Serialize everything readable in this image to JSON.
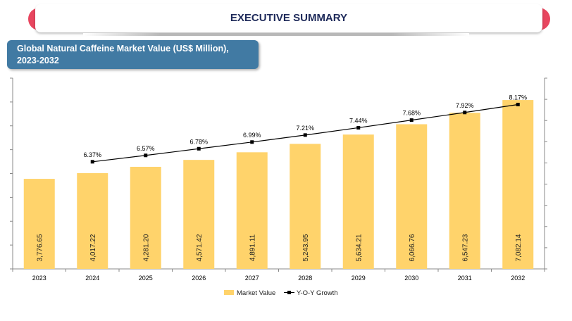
{
  "header": {
    "title": "EXECUTIVE SUMMARY"
  },
  "chart_data": {
    "type": "bar",
    "title": "Global Natural Caffeine Market Value (US$ Million), 2023-2032",
    "categories": [
      "2023",
      "2024",
      "2025",
      "2026",
      "2027",
      "2028",
      "2029",
      "2030",
      "2031",
      "2032"
    ],
    "series": [
      {
        "name": "Market Value",
        "values": [
          3776.65,
          4017.22,
          4281.2,
          4571.42,
          4891.11,
          5243.95,
          5634.21,
          6066.76,
          6547.23,
          7082.14
        ],
        "labels": [
          "3,776.65",
          "4,017.22",
          "4,281.20",
          "4,571.42",
          "4,891.11",
          "5,243.95",
          "5,634.21",
          "6,066.76",
          "6,547.23",
          "7,082.14"
        ],
        "color": "#ffd36b"
      },
      {
        "name": "Y-O-Y Growth",
        "type": "line",
        "values": [
          null,
          6.37,
          6.57,
          6.78,
          6.99,
          7.21,
          7.44,
          7.68,
          7.92,
          8.17
        ],
        "labels": [
          "",
          "6.37%",
          "6.57%",
          "6.78%",
          "6.99%",
          "7.21%",
          "7.44%",
          "7.68%",
          "7.92%",
          "8.17%"
        ],
        "color": "#000000"
      }
    ],
    "ylim": [
      0,
      8000
    ],
    "y2lim": [
      3,
      9
    ],
    "legend": "bottom"
  }
}
